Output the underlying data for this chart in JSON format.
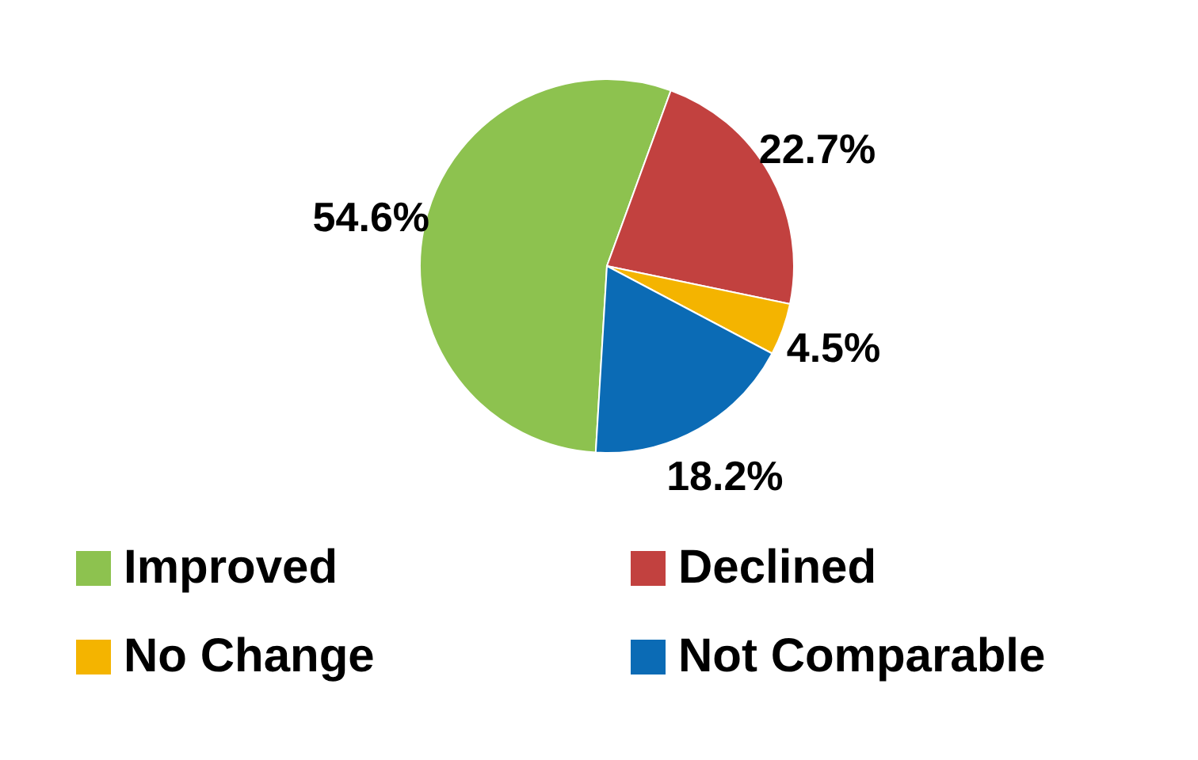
{
  "chart_data": {
    "type": "pie",
    "categories": [
      "Improved",
      "Declined",
      "No Change",
      "Not Comparable"
    ],
    "values": [
      54.6,
      22.7,
      4.5,
      18.2
    ],
    "colors": [
      "#8dc24f",
      "#c2413f",
      "#f4b400",
      "#0b6bb5"
    ],
    "value_labels": [
      "54.6%",
      "22.7%",
      "4.5%",
      "18.2%"
    ],
    "legend": "bottom"
  }
}
